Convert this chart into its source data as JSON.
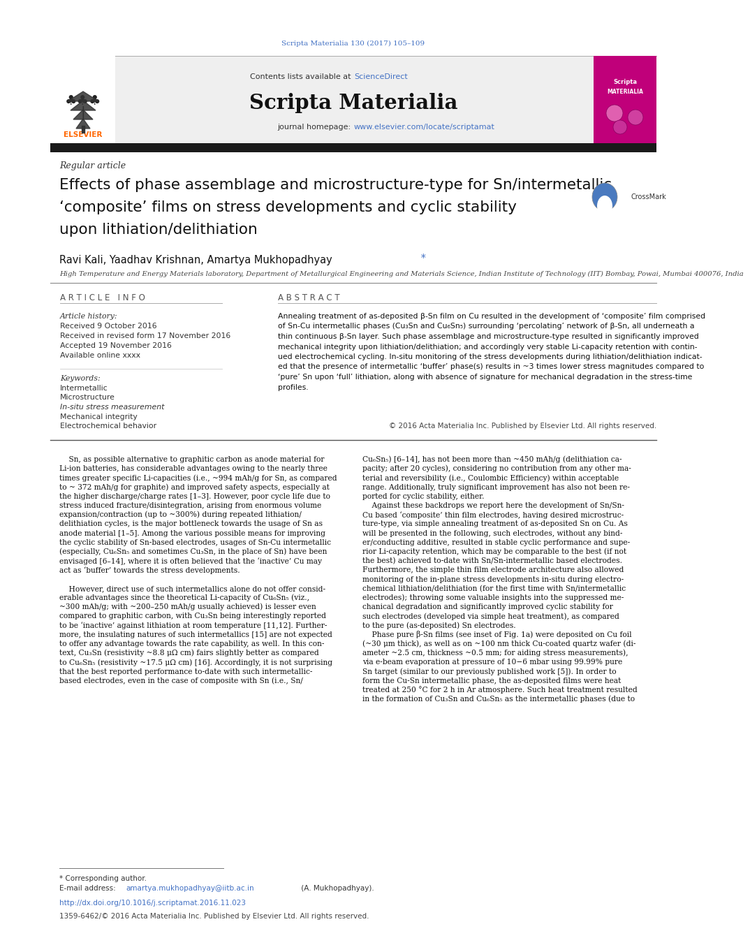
{
  "page_width": 9.92,
  "page_height": 13.23,
  "background_color": "#ffffff",
  "top_journal_ref": "Scripta Materialia 130 (2017) 105–109",
  "journal_ref_color": "#4472c4",
  "journal_name": "Scripta Materialia",
  "contents_text": "Contents lists available at ",
  "sciencedirect_text": "ScienceDirect",
  "sciencedirect_color": "#4472c4",
  "journal_homepage_prefix": "journal homepage: ",
  "homepage_url": "www.elsevier.com/locate/scriptamat",
  "homepage_color": "#4472c4",
  "header_bg_color": "#efefef",
  "black_bar_color": "#1a1a1a",
  "regular_article_text": "Regular article",
  "paper_title_line1": "Effects of phase assemblage and microstructure-type for Sn/intermetallic",
  "paper_title_line2": "‘composite’ films on stress developments and cyclic stability",
  "paper_title_line3": "upon lithiation/delithiation",
  "author_line": "Ravi Kali, Yaadhav Krishnan, Amartya Mukhopadhyay",
  "affiliation": "High Temperature and Energy Materials laboratory, Department of Metallurgical Engineering and Materials Science, Indian Institute of Technology (IIT) Bombay, Powai, Mumbai 400076, India",
  "article_info_header": "A R T I C L E   I N F O",
  "abstract_header": "A B S T R A C T",
  "article_history_label": "Article history:",
  "received_text": "Received 9 October 2016",
  "revised_text": "Received in revised form 17 November 2016",
  "accepted_text": "Accepted 19 November 2016",
  "available_text": "Available online xxxx",
  "keywords_label": "Keywords:",
  "keyword1": "Intermetallic",
  "keyword2": "Microstructure",
  "keyword3": "In-situ stress measurement",
  "keyword4": "Mechanical integrity",
  "keyword5": "Electrochemical behavior",
  "copyright_text": "© 2016 Acta Materialia Inc. Published by Elsevier Ltd. All rights reserved.",
  "doi_text": "http://dx.doi.org/10.1016/j.scriptamat.2016.11.023",
  "doi_color": "#4472c4",
  "issn_text": "1359-6462/© 2016 Acta Materialia Inc. Published by Elsevier Ltd. All rights reserved.",
  "corresponding_author_text": "* Corresponding author.",
  "email_prefix": "E-mail address: ",
  "email_link": "amartya.mukhopadhyay@iitb.ac.in",
  "email_suffix": " (A. Mukhopadhyay).",
  "email_color": "#4472c4",
  "abstract_lines": [
    "Annealing treatment of as-deposited β-Sn film on Cu resulted in the development of ‘composite’ film comprised",
    "of Sn-Cu intermetallic phases (Cu₃Sn and Cu₆Sn₅) surrounding ‘percolating’ network of β-Sn, all underneath a",
    "thin continuous β-Sn layer. Such phase assemblage and microstructure-type resulted in significantly improved",
    "mechanical integrity upon lithiation/delithiation; and accordingly very stable Li-capacity retention with contin-",
    "ued electrochemical cycling. In-situ monitoring of the stress developments during lithiation/delithiation indicat-",
    "ed that the presence of intermetallic ‘buffer’ phase(s) results in ~3 times lower stress magnitudes compared to",
    "‘pure’ Sn upon ‘full’ lithiation, along with absence of signature for mechanical degradation in the stress-time",
    "profiles."
  ],
  "left_col_lines": [
    "    Sn, as possible alternative to graphitic carbon as anode material for",
    "Li-ion batteries, has considerable advantages owing to the nearly three",
    "times greater specific Li-capacities (i.e., ~994 mAh/g for Sn, as compared",
    "to ~ 372 mAh/g for graphite) and improved safety aspects, especially at",
    "the higher discharge/charge rates [1–3]. However, poor cycle life due to",
    "stress induced fracture/disintegration, arising from enormous volume",
    "expansion/contraction (up to ~300%) during repeated lithiation/",
    "delithiation cycles, is the major bottleneck towards the usage of Sn as",
    "anode material [1–5]. Among the various possible means for improving",
    "the cyclic stability of Sn-based electrodes, usages of Sn-Cu intermetallic",
    "(especially, Cu₆Sn₅ and sometimes Cu₃Sn, in the place of Sn) have been",
    "envisaged [6–14], where it is often believed that the ‘inactive’ Cu may",
    "act as ‘buffer’ towards the stress developments.",
    "",
    "    However, direct use of such intermetallics alone do not offer consid-",
    "erable advantages since the theoretical Li-capacity of Cu₆Sn₅ (viz.,",
    "~300 mAh/g; with ~200–250 mAh/g usually achieved) is lesser even",
    "compared to graphitic carbon, with Cu₃Sn being interestingly reported",
    "to be ‘inactive’ against lithiation at room temperature [11,12]. Further-",
    "more, the insulating natures of such intermetallics [15] are not expected",
    "to offer any advantage towards the rate capability, as well. In this con-",
    "text, Cu₃Sn (resistivity ~8.8 μΩ cm) fairs slightly better as compared",
    "to Cu₆Sn₅ (resistivity ~17.5 μΩ cm) [16]. Accordingly, it is not surprising",
    "that the best reported performance to-date with such intermetallic-",
    "based electrodes, even in the case of composite with Sn (i.e., Sn/"
  ],
  "right_col_lines": [
    "Cu₆Sn₅) [6–14], has not been more than ~450 mAh/g (delithiation ca-",
    "pacity; after 20 cycles), considering no contribution from any other ma-",
    "terial and reversibility (i.e., Coulombic Efficiency) within acceptable",
    "range. Additionally, truly significant improvement has also not been re-",
    "ported for cyclic stability, either.",
    "    Against these backdrops we report here the development of Sn/Sn-",
    "Cu based ‘composite’ thin film electrodes, having desired microstruc-",
    "ture-type, via simple annealing treatment of as-deposited Sn on Cu. As",
    "will be presented in the following, such electrodes, without any bind-",
    "er/conducting additive, resulted in stable cyclic performance and supe-",
    "rior Li-capacity retention, which may be comparable to the best (if not",
    "the best) achieved to-date with Sn/Sn-intermetallic based electrodes.",
    "Furthermore, the simple thin film electrode architecture also allowed",
    "monitoring of the in-plane stress developments in-situ during electro-",
    "chemical lithiation/delithiation (for the first time with Sn/intermetallic",
    "electrodes); throwing some valuable insights into the suppressed me-",
    "chanical degradation and significantly improved cyclic stability for",
    "such electrodes (developed via simple heat treatment), as compared",
    "to the pure (as-deposited) Sn electrodes.",
    "    Phase pure β-Sn films (see inset of Fig. 1a) were deposited on Cu foil",
    "(~30 μm thick), as well as on ~100 nm thick Cu-coated quartz wafer (di-",
    "ameter ~2.5 cm, thickness ~0.5 mm; for aiding stress measurements),",
    "via e-beam evaporation at pressure of 10−6 mbar using 99.99% pure",
    "Sn target (similar to our previously published work [5]). In order to",
    "form the Cu-Sn intermetallic phase, the as-deposited films were heat",
    "treated at 250 °C for 2 h in Ar atmosphere. Such heat treatment resulted",
    "in the formation of Cu₃Sn and Cu₆Sn₅ as the intermetallic phases (due to"
  ]
}
